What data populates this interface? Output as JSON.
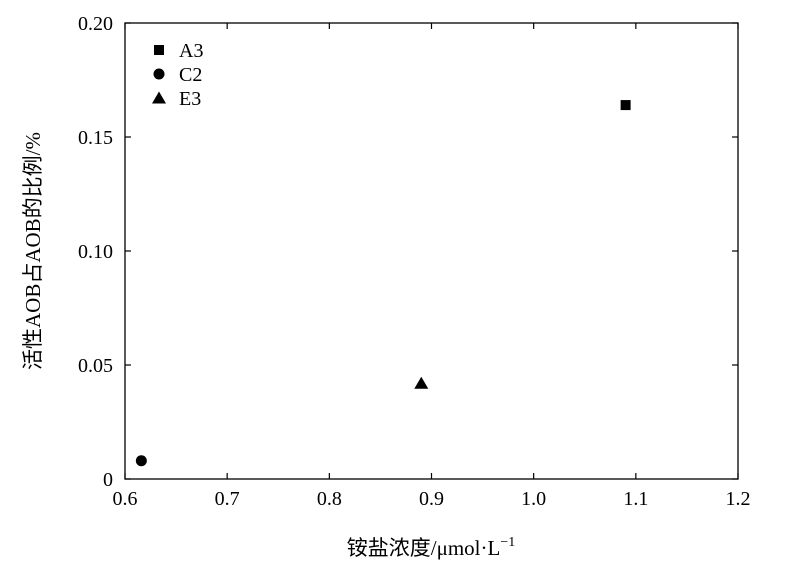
{
  "chart_data": {
    "type": "scatter",
    "title": "",
    "xlabel": "铵盐浓度/μmol·L",
    "xlabel_sup": "−1",
    "ylabel": "活性AOB占AOB的比例/%",
    "xlim": [
      0.6,
      1.2
    ],
    "ylim": [
      0,
      0.2
    ],
    "x_ticks": [
      0.6,
      0.7,
      0.8,
      0.9,
      1.0,
      1.1,
      1.2
    ],
    "x_tick_labels": [
      "0.6",
      "0.7",
      "0.8",
      "0.9",
      "1.0",
      "1.1",
      "1.2"
    ],
    "y_ticks": [
      0,
      0.05,
      0.1,
      0.15,
      0.2
    ],
    "y_tick_labels": [
      "0",
      "0.05",
      "0.10",
      "0.15",
      "0.20"
    ],
    "grid": false,
    "legend_position": "top-left",
    "series": [
      {
        "name": "A3",
        "marker": "square",
        "color": "#000000",
        "points": [
          {
            "x": 1.09,
            "y": 0.164
          }
        ]
      },
      {
        "name": "C2",
        "marker": "circle",
        "color": "#000000",
        "points": [
          {
            "x": 0.616,
            "y": 0.008
          }
        ]
      },
      {
        "name": "E3",
        "marker": "triangle",
        "color": "#000000",
        "points": [
          {
            "x": 0.89,
            "y": 0.042
          }
        ]
      }
    ]
  }
}
